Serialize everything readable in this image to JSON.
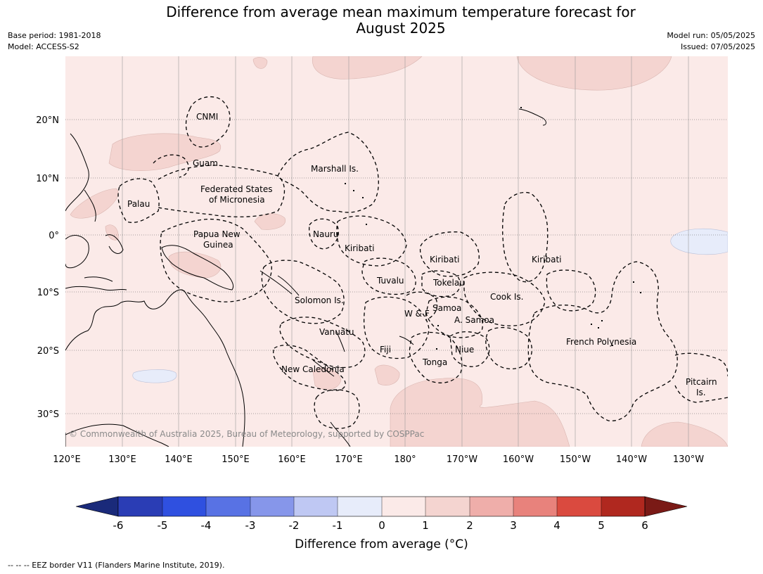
{
  "title": {
    "line1": "Difference from average mean maximum temperature forecast for",
    "line2": "August 2025"
  },
  "meta": {
    "base_period": "Base period: 1981-2018",
    "model": "Model: ACCESS-S2",
    "model_run": "Model run: 05/05/2025",
    "issued": "Issued: 07/05/2025"
  },
  "map": {
    "copyright": "© Commonwealth of Australia 2025, Bureau of Meteorology, supported by COSPPac",
    "lon_ticks": [
      "120°E",
      "130°E",
      "140°E",
      "150°E",
      "160°E",
      "170°E",
      "180°",
      "170°W",
      "160°W",
      "150°W",
      "140°W",
      "130°W"
    ],
    "lat_ticks": [
      "20°N",
      "10°N",
      "0°",
      "10°S",
      "20°S",
      "30°S"
    ],
    "colors": {
      "background": "#fbeae8",
      "warm": "#f4d4d0",
      "cool": "#e7ecfa",
      "land_line": "#000000"
    },
    "labels": {
      "cnmi": "CNMI",
      "guam": "Guam",
      "marshall": "Marshall Is.",
      "fsm1": "Federated States",
      "fsm2": "of Micronesia",
      "palau": "Palau",
      "png1": "Papua New",
      "png2": "Guinea",
      "nauru": "Nauru",
      "kiribati_w": "Kiribati",
      "kiribati_c": "Kiribati",
      "kiribati_e": "Kiribati",
      "tuvalu": "Tuvalu",
      "tokelau": "Tokelau",
      "cook": "Cook Is.",
      "solomon": "Solomon Is.",
      "wf": "W & F",
      "samoa": "Samoa",
      "asamoa": "A. Samoa",
      "vanuatu": "Vanuatu",
      "fiji": "Fiji",
      "niue": "Niue",
      "tonga": "Tonga",
      "french_poly": "French Polynesia",
      "new_caledonia": "New Caledonia",
      "pitcairn1": "Pitcairn",
      "pitcairn2": "Is."
    }
  },
  "colorbar": {
    "ticks": [
      "-6",
      "-5",
      "-4",
      "-3",
      "-2",
      "-1",
      "0",
      "1",
      "2",
      "3",
      "4",
      "5",
      "6"
    ],
    "colors": [
      "#1a2a7a",
      "#2a3db5",
      "#2f50e0",
      "#5872e4",
      "#8696ea",
      "#bfc8f3",
      "#e7ecfa",
      "#fbeae8",
      "#f4d4d0",
      "#efaeaa",
      "#e8827c",
      "#da4a3f",
      "#b0281f",
      "#7a1a16"
    ],
    "label": "Difference from average (°C)"
  },
  "footnote": "--  --  -- EEZ border V11 (Flanders Marine Institute, 2019)."
}
